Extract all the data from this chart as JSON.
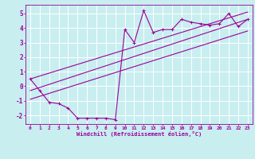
{
  "title": "",
  "xlabel": "Windchill (Refroidissement éolien,°C)",
  "ylabel": "",
  "xlim": [
    -0.5,
    23.5
  ],
  "ylim": [
    -2.6,
    5.6
  ],
  "xticks": [
    0,
    1,
    2,
    3,
    4,
    5,
    6,
    7,
    8,
    9,
    10,
    11,
    12,
    13,
    14,
    15,
    16,
    17,
    18,
    19,
    20,
    21,
    22,
    23
  ],
  "yticks": [
    -2,
    -1,
    0,
    1,
    2,
    3,
    4,
    5
  ],
  "background_color": "#c8eef0",
  "grid_color": "#ffffff",
  "line_color": "#990099",
  "data_line": {
    "x": [
      0,
      1,
      2,
      3,
      4,
      5,
      6,
      7,
      8,
      9,
      10,
      11,
      12,
      13,
      14,
      15,
      16,
      17,
      18,
      19,
      20,
      21,
      22,
      23
    ],
    "y": [
      0.5,
      -0.3,
      -1.1,
      -1.2,
      -1.5,
      -2.2,
      -2.2,
      -2.2,
      -2.2,
      -2.3,
      3.9,
      3.0,
      5.2,
      3.7,
      3.9,
      3.9,
      4.6,
      4.4,
      4.3,
      4.2,
      4.3,
      5.0,
      4.1,
      4.6
    ]
  },
  "reg_line1": {
    "x": [
      0,
      23
    ],
    "y": [
      -0.3,
      4.6
    ]
  },
  "reg_line2": {
    "x": [
      0,
      23
    ],
    "y": [
      0.5,
      5.1
    ]
  },
  "reg_line3": {
    "x": [
      0,
      23
    ],
    "y": [
      -0.9,
      3.8
    ]
  },
  "marker_size": 2.5,
  "line_width": 0.8
}
